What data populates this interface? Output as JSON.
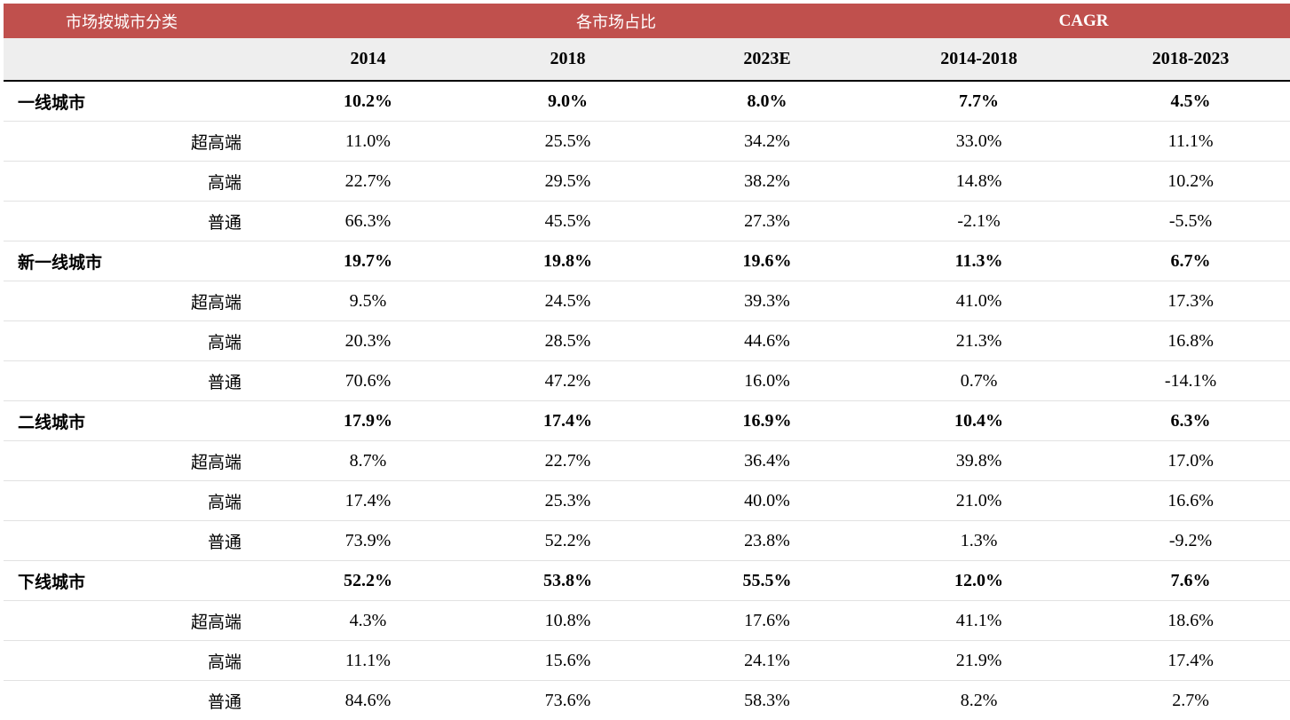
{
  "header": {
    "category_label": "市场按城市分类",
    "share_label": "各市场占比",
    "cagr_label": "CAGR"
  },
  "columns": [
    "2014",
    "2018",
    "2023E",
    "2014-2018",
    "2018-2023"
  ],
  "groups": [
    {
      "name": "一线城市",
      "values": [
        "10.2%",
        "9.0%",
        "8.0%",
        "7.7%",
        "4.5%"
      ],
      "segments": [
        {
          "name": "超高端",
          "values": [
            "11.0%",
            "25.5%",
            "34.2%",
            "33.0%",
            "11.1%"
          ]
        },
        {
          "name": "高端",
          "values": [
            "22.7%",
            "29.5%",
            "38.2%",
            "14.8%",
            "10.2%"
          ]
        },
        {
          "name": "普通",
          "values": [
            "66.3%",
            "45.5%",
            "27.3%",
            "-2.1%",
            "-5.5%"
          ]
        }
      ]
    },
    {
      "name": "新一线城市",
      "values": [
        "19.7%",
        "19.8%",
        "19.6%",
        "11.3%",
        "6.7%"
      ],
      "segments": [
        {
          "name": "超高端",
          "values": [
            "9.5%",
            "24.5%",
            "39.3%",
            "41.0%",
            "17.3%"
          ]
        },
        {
          "name": "高端",
          "values": [
            "20.3%",
            "28.5%",
            "44.6%",
            "21.3%",
            "16.8%"
          ]
        },
        {
          "name": "普通",
          "values": [
            "70.6%",
            "47.2%",
            "16.0%",
            "0.7%",
            "-14.1%"
          ]
        }
      ]
    },
    {
      "name": "二线城市",
      "values": [
        "17.9%",
        "17.4%",
        "16.9%",
        "10.4%",
        "6.3%"
      ],
      "segments": [
        {
          "name": "超高端",
          "values": [
            "8.7%",
            "22.7%",
            "36.4%",
            "39.8%",
            "17.0%"
          ]
        },
        {
          "name": "高端",
          "values": [
            "17.4%",
            "25.3%",
            "40.0%",
            "21.0%",
            "16.6%"
          ]
        },
        {
          "name": "普通",
          "values": [
            "73.9%",
            "52.2%",
            "23.8%",
            "1.3%",
            "-9.2%"
          ]
        }
      ]
    },
    {
      "name": "下线城市",
      "values": [
        "52.2%",
        "53.8%",
        "55.5%",
        "12.0%",
        "7.6%"
      ],
      "segments": [
        {
          "name": "超高端",
          "values": [
            "4.3%",
            "10.8%",
            "17.6%",
            "41.1%",
            "18.6%"
          ]
        },
        {
          "name": "高端",
          "values": [
            "11.1%",
            "15.6%",
            "24.1%",
            "21.9%",
            "17.4%"
          ]
        },
        {
          "name": "普通",
          "values": [
            "84.6%",
            "73.6%",
            "58.3%",
            "8.2%",
            "2.7%"
          ]
        }
      ]
    }
  ],
  "colors": {
    "header_bg": "#c0504d",
    "subheader_bg": "#eeeeee"
  }
}
